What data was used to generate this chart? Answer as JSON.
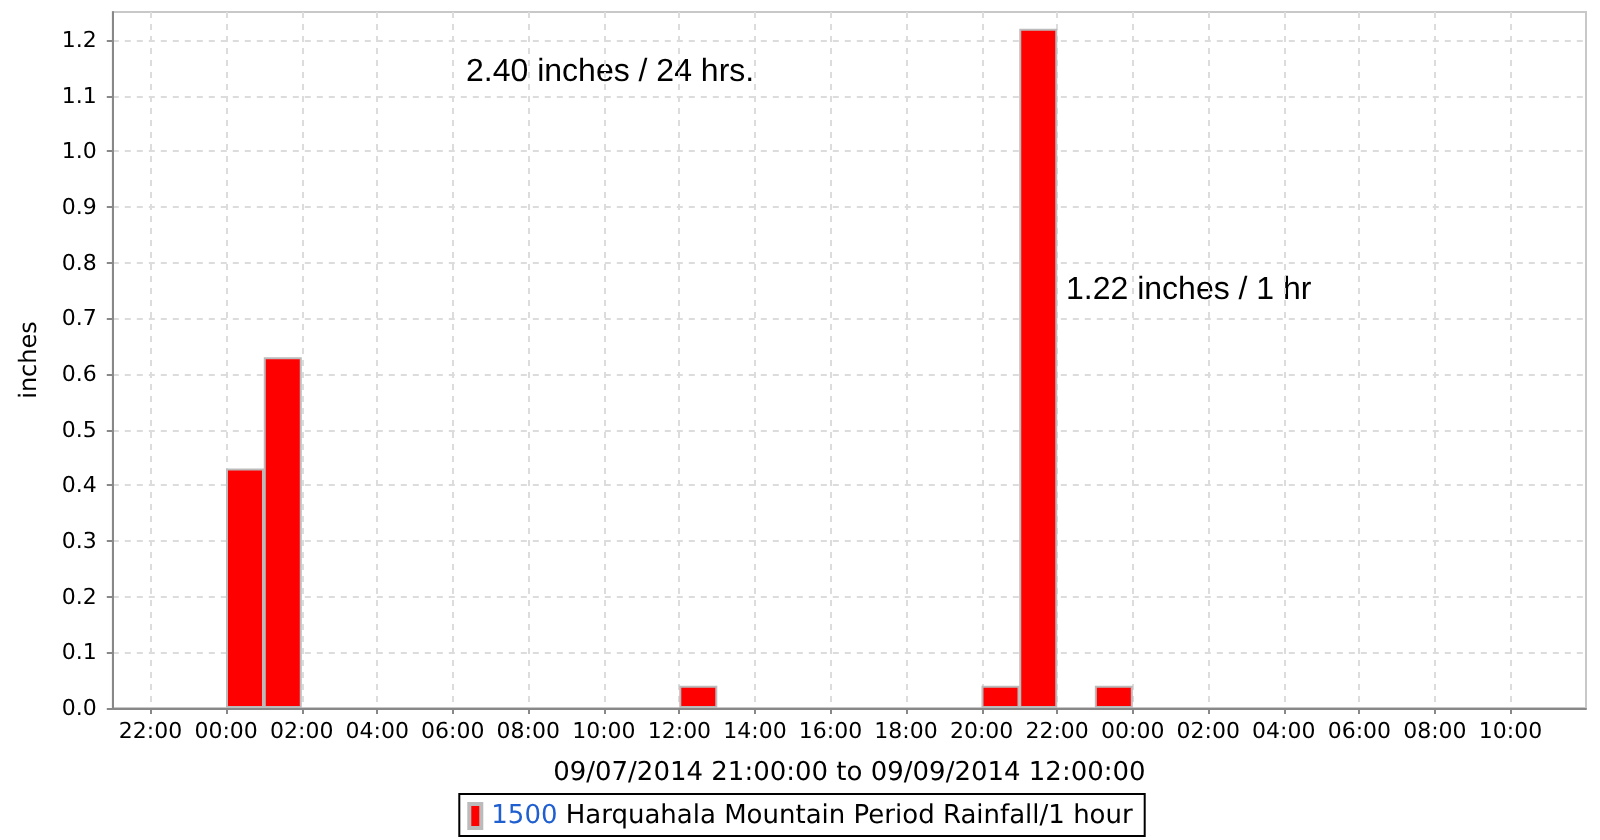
{
  "chart_data": {
    "type": "bar",
    "xlabel": "09/07/2014 21:00:00 to 09/09/2014 12:00:00",
    "ylabel": "inches",
    "annotations": [
      "2.40 inches / 24 hrs.",
      "1.22 inches / 1 hr"
    ],
    "x": [
      "2014-09-08T00:30",
      "2014-09-08T01:30",
      "2014-09-08T12:30",
      "2014-09-08T20:30",
      "2014-09-08T21:30",
      "2014-09-08T23:30"
    ],
    "series": [
      {
        "name": "1500 Harquahala Mountain Period Rainfall/1 hour",
        "color": "#ff0000",
        "values": [
          0.43,
          0.63,
          0.04,
          0.04,
          1.22,
          0.04
        ]
      }
    ],
    "xlim": [
      "2014-09-07T21:00",
      "2014-09-09T12:00"
    ],
    "xticks": [
      {
        "value": "2014-09-07T22:00",
        "label": "22:00"
      },
      {
        "value": "2014-09-08T00:00",
        "label": "00:00"
      },
      {
        "value": "2014-09-08T02:00",
        "label": "02:00"
      },
      {
        "value": "2014-09-08T04:00",
        "label": "04:00"
      },
      {
        "value": "2014-09-08T06:00",
        "label": "06:00"
      },
      {
        "value": "2014-09-08T08:00",
        "label": "08:00"
      },
      {
        "value": "2014-09-08T10:00",
        "label": "10:00"
      },
      {
        "value": "2014-09-08T12:00",
        "label": "12:00"
      },
      {
        "value": "2014-09-08T14:00",
        "label": "14:00"
      },
      {
        "value": "2014-09-08T16:00",
        "label": "16:00"
      },
      {
        "value": "2014-09-08T18:00",
        "label": "18:00"
      },
      {
        "value": "2014-09-08T20:00",
        "label": "20:00"
      },
      {
        "value": "2014-09-08T22:00",
        "label": "22:00"
      },
      {
        "value": "2014-09-09T00:00",
        "label": "00:00"
      },
      {
        "value": "2014-09-09T02:00",
        "label": "02:00"
      },
      {
        "value": "2014-09-09T04:00",
        "label": "04:00"
      },
      {
        "value": "2014-09-09T06:00",
        "label": "06:00"
      },
      {
        "value": "2014-09-09T08:00",
        "label": "08:00"
      },
      {
        "value": "2014-09-09T10:00",
        "label": "10:00"
      }
    ],
    "ylim": [
      0,
      1.25
    ],
    "yticks": [
      {
        "value": 0,
        "label": "0.0"
      },
      {
        "value": 0.1,
        "label": "0.1"
      },
      {
        "value": 0.2,
        "label": "0.2"
      },
      {
        "value": 0.3,
        "label": "0.3"
      },
      {
        "value": 0.4,
        "label": "0.4"
      },
      {
        "value": 0.5,
        "label": "0.5"
      },
      {
        "value": 0.6,
        "label": "0.6"
      },
      {
        "value": 0.7,
        "label": "0.7"
      },
      {
        "value": 0.8,
        "label": "0.8"
      },
      {
        "value": 0.9,
        "label": "0.9"
      },
      {
        "value": 1,
        "label": "1.0"
      },
      {
        "value": 1.1,
        "label": "1.1"
      },
      {
        "value": 1.2,
        "label": "1.2"
      }
    ],
    "grid": true,
    "legend": "bottom"
  }
}
